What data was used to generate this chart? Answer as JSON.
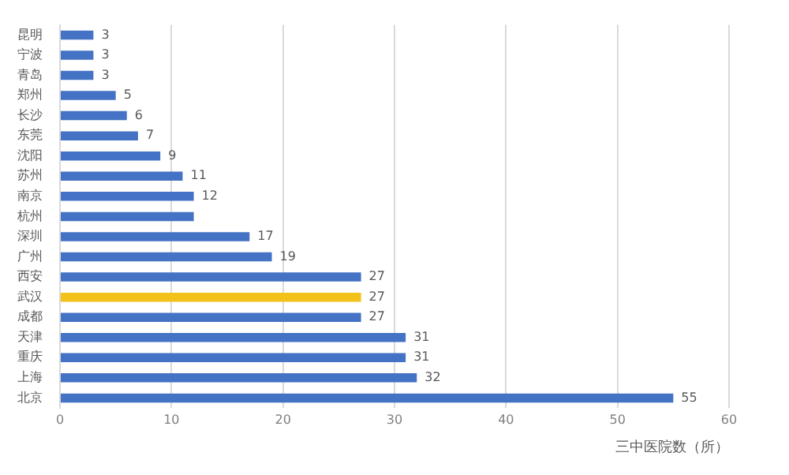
{
  "chart_data": {
    "type": "bar",
    "orientation": "horizontal",
    "xlabel": "三中医院数（所）",
    "categories": [
      "昆明",
      "宁波",
      "青岛",
      "郑州",
      "长沙",
      "东莞",
      "沈阳",
      "苏州",
      "南京",
      "杭州",
      "深圳",
      "广州",
      "西安",
      "武汉",
      "成都",
      "天津",
      "重庆",
      "上海",
      "北京"
    ],
    "values": [
      3,
      3,
      3,
      5,
      6,
      7,
      9,
      11,
      12,
      12,
      17,
      19,
      27,
      27,
      27,
      31,
      31,
      32,
      55
    ],
    "value_labels": [
      "3",
      "3",
      "3",
      "5",
      "6",
      "7",
      "9",
      "11",
      "12",
      null,
      "17",
      "19",
      "27",
      "27",
      "27",
      "31",
      "31",
      "32",
      "55"
    ],
    "colors": [
      "#4472c4",
      "#4472c4",
      "#4472c4",
      "#4472c4",
      "#4472c4",
      "#4472c4",
      "#4472c4",
      "#4472c4",
      "#4472c4",
      "#4472c4",
      "#4472c4",
      "#4472c4",
      "#4472c4",
      "#f2c21b",
      "#4472c4",
      "#4472c4",
      "#4472c4",
      "#4472c4",
      "#4472c4"
    ],
    "xlim": [
      0,
      60
    ],
    "xticks": [
      0,
      10,
      20,
      30,
      40,
      50,
      60
    ],
    "grid": "x",
    "legend": false
  }
}
